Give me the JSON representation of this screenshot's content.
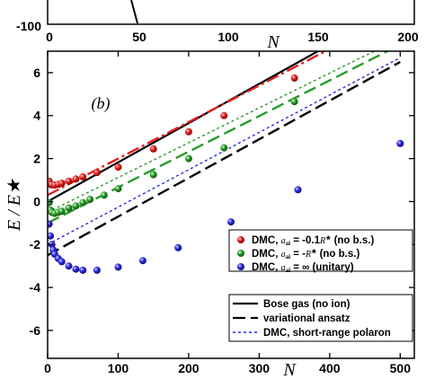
{
  "top_panel": {
    "y_tick_label": "-100",
    "x_ticks": [
      "0",
      "50",
      "100",
      "150",
      "200"
    ],
    "x_label": "N"
  },
  "chart_data": {
    "type": "scatter",
    "panel_label": "(b)",
    "xlabel": "N",
    "ylabel": "E / E★",
    "xlim": [
      0,
      520
    ],
    "ylim": [
      -7.3,
      7
    ],
    "x_ticks": [
      0,
      100,
      200,
      300,
      400,
      500
    ],
    "y_ticks": [
      -6,
      -4,
      -2,
      0,
      2,
      4,
      6
    ],
    "legend_position": "bottom-right",
    "series": [
      {
        "name": "DMC, a_ai = -0.1R★ (no b.s.)",
        "name_parts": {
          "prefix": "DMC, ",
          "a": "a",
          "sub": "ai",
          "eq": " = -0.1",
          "R": "R",
          "star": "★",
          "suffix": " (no b.s.)"
        },
        "kind": "points",
        "color": "#e02020",
        "x": [
          2,
          4,
          6,
          10,
          15,
          20,
          30,
          40,
          50,
          70,
          100,
          150,
          200,
          250,
          350
        ],
        "y": [
          0.95,
          0.8,
          0.78,
          0.77,
          0.8,
          0.85,
          0.95,
          1.05,
          1.15,
          1.35,
          1.6,
          2.45,
          3.25,
          4.0,
          5.75
        ]
      },
      {
        "name": "DMC, a_ai = -R★ (no b.s.)",
        "name_parts": {
          "prefix": "DMC, ",
          "a": "a",
          "sub": "ai",
          "eq": " = -",
          "R": "R",
          "star": "★",
          "suffix": " (no b.s.)"
        },
        "kind": "points",
        "color": "#2a9a2a",
        "x": [
          2,
          4,
          6,
          10,
          15,
          20,
          30,
          40,
          50,
          60,
          80,
          100,
          150,
          200,
          250,
          350
        ],
        "y": [
          -0.05,
          -0.4,
          -0.5,
          -0.55,
          -0.5,
          -0.45,
          -0.3,
          -0.2,
          -0.05,
          0.1,
          0.3,
          0.6,
          1.25,
          2.0,
          2.5,
          4.65
        ]
      },
      {
        "name": "DMC, a_ai = ∞ (unitary)",
        "name_parts": {
          "prefix": "DMC, ",
          "a": "a",
          "sub": "ai",
          "eq": " = ∞",
          "R": "",
          "star": "",
          "suffix": " (unitary)"
        },
        "kind": "points",
        "color": "#2a2ae0",
        "x": [
          2,
          4,
          6,
          8,
          10,
          15,
          20,
          30,
          40,
          50,
          70,
          100,
          135,
          185,
          260,
          355,
          500
        ],
        "y": [
          -1.05,
          -1.6,
          -2.0,
          -2.25,
          -2.45,
          -2.65,
          -2.8,
          -3.0,
          -3.15,
          -3.2,
          -3.2,
          -3.05,
          -2.75,
          -2.15,
          -0.95,
          0.55,
          2.7
        ]
      },
      {
        "name": "Bose gas (no ion)",
        "kind": "line",
        "style": "solid",
        "color": "#000000",
        "x": [
          0,
          400
        ],
        "y": [
          0,
          7.3
        ]
      },
      {
        "name": "variational ansatz",
        "kind": "line",
        "style": "dashed",
        "color": "#000000",
        "x": [
          0,
          500
        ],
        "y": [
          -2.5,
          6.5
        ]
      },
      {
        "name": "DMC, short-range polaron",
        "kind": "line",
        "style": "dotted",
        "color": "#2a2ae0",
        "x": [
          0,
          500
        ],
        "y": [
          -2.0,
          6.7
        ]
      },
      {
        "name": "",
        "kind": "line",
        "style": "dashdot",
        "color": "#e02020",
        "x": [
          0,
          400
        ],
        "y": [
          0.3,
          7.1
        ]
      },
      {
        "name": "",
        "kind": "line",
        "style": "dashed",
        "color": "#2a9a2a",
        "x": [
          0,
          500
        ],
        "y": [
          -1.0,
          7.3
        ]
      },
      {
        "name": "",
        "kind": "line",
        "style": "dotted",
        "color": "#2a9a2a",
        "x": [
          0,
          500
        ],
        "y": [
          -0.5,
          7.6
        ]
      }
    ]
  }
}
